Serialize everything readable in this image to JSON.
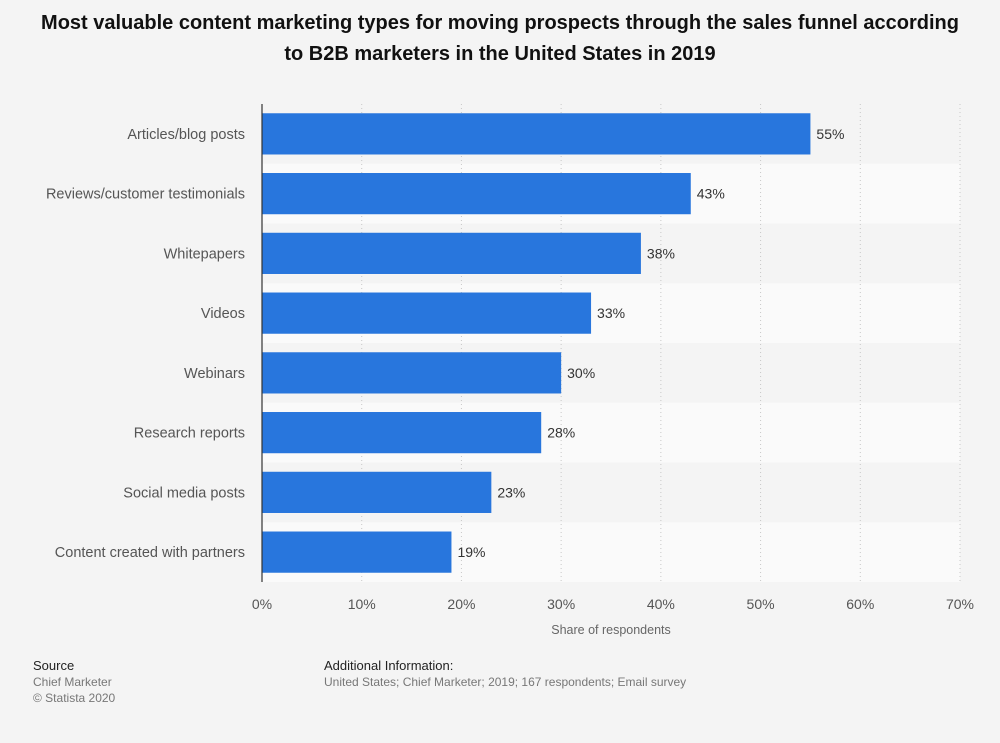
{
  "chart_data": {
    "type": "bar",
    "orientation": "horizontal",
    "title": "Most valuable content marketing types for moving prospects through the sales funnel according to B2B marketers in the United States in 2019",
    "categories": [
      "Articles/blog posts",
      "Reviews/customer testimonials",
      "Whitepapers",
      "Videos",
      "Webinars",
      "Research reports",
      "Social media posts",
      "Content created with partners"
    ],
    "values": [
      55,
      43,
      38,
      33,
      30,
      28,
      23,
      19
    ],
    "value_labels": [
      "55%",
      "43%",
      "38%",
      "33%",
      "30%",
      "28%",
      "23%",
      "19%"
    ],
    "xlabel": "Share of respondents",
    "ylabel": "",
    "xlim": [
      0,
      70
    ],
    "xticks": [
      0,
      10,
      20,
      30,
      40,
      50,
      60,
      70
    ],
    "xtick_labels": [
      "0%",
      "10%",
      "20%",
      "30%",
      "40%",
      "50%",
      "60%",
      "70%"
    ],
    "grid": true,
    "bar_color": "#2876dd"
  },
  "footer": {
    "source_heading": "Source",
    "source_name": "Chief Marketer",
    "copyright": "© Statista 2020",
    "additional_heading": "Additional Information:",
    "additional_text": "United States; Chief Marketer; 2019; 167 respondents; Email survey"
  }
}
